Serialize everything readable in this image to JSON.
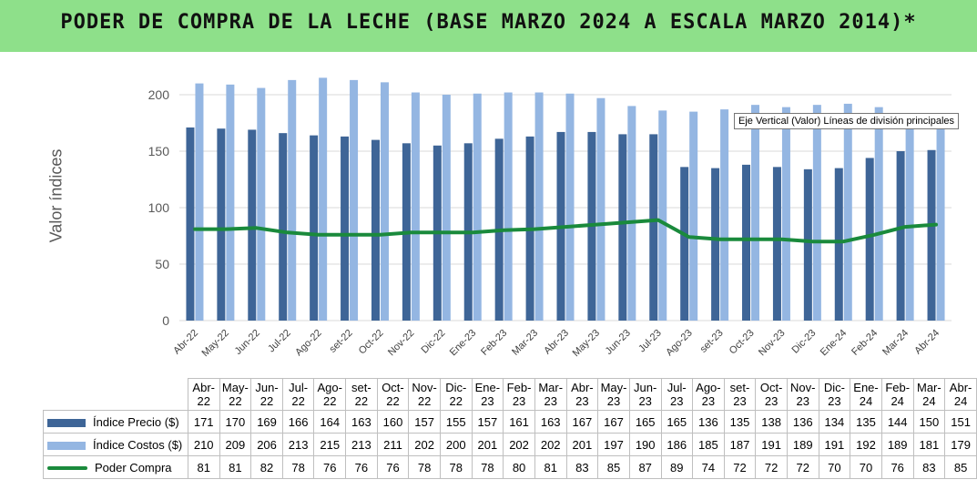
{
  "title": "PODER DE COMPRA DE LA LECHE (BASE MARZO 2024 A ESCALA MARZO 2014)*",
  "tooltip": "Eje Vertical (Valor)  Líneas de división principales",
  "colors": {
    "title_bg": "#8ee08a",
    "precio": "#3e6597",
    "costos": "#94b6e2",
    "poder": "#1a8a3c",
    "grid": "#d9d9d9"
  },
  "chart_data": {
    "type": "bar",
    "title": "PODER DE COMPRA DE LA LECHE (BASE MARZO 2024 A ESCALA MARZO 2014)*",
    "ylabel": "Valor índices",
    "xlabel": "",
    "ylim": [
      0,
      200
    ],
    "yticks": [
      0,
      50,
      100,
      150,
      200
    ],
    "grid": true,
    "legend": "data-table",
    "categories": [
      "Abr-22",
      "May-22",
      "Jun-22",
      "Jul-22",
      "Ago-22",
      "set-22",
      "Oct-22",
      "Nov-22",
      "Dic-22",
      "Ene-23",
      "Feb-23",
      "Mar-23",
      "Abr-23",
      "May-23",
      "Jun-23",
      "Jul-23",
      "Ago-23",
      "set-23",
      "Oct-23",
      "Nov-23",
      "Dic-23",
      "Ene-24",
      "Feb-24",
      "Mar-24",
      "Abr-24"
    ],
    "table_headers": [
      [
        "Abr-",
        "22"
      ],
      [
        "May-",
        "22"
      ],
      [
        "Jun-",
        "22"
      ],
      [
        "Jul-",
        "22"
      ],
      [
        "Ago-",
        "22"
      ],
      [
        "set-",
        "22"
      ],
      [
        "Oct-",
        "22"
      ],
      [
        "Nov-",
        "22"
      ],
      [
        "Dic-",
        "22"
      ],
      [
        "Ene-",
        "23"
      ],
      [
        "Feb-",
        "23"
      ],
      [
        "Mar-",
        "23"
      ],
      [
        "Abr-",
        "23"
      ],
      [
        "May-",
        "23"
      ],
      [
        "Jun-",
        "23"
      ],
      [
        "Jul-",
        "23"
      ],
      [
        "Ago-",
        "23"
      ],
      [
        "set-",
        "23"
      ],
      [
        "Oct-",
        "23"
      ],
      [
        "Nov-",
        "23"
      ],
      [
        "Dic-",
        "23"
      ],
      [
        "Ene-",
        "24"
      ],
      [
        "Feb-",
        "24"
      ],
      [
        "Mar-",
        "24"
      ],
      [
        "Abr-",
        "24"
      ]
    ],
    "series": [
      {
        "name": "Índice Precio ($)",
        "type": "bar",
        "values": [
          171,
          170,
          169,
          166,
          164,
          163,
          160,
          157,
          155,
          157,
          161,
          163,
          167,
          167,
          165,
          165,
          136,
          135,
          138,
          136,
          134,
          135,
          144,
          150,
          151
        ]
      },
      {
        "name": "Índice Costos ($)",
        "type": "bar",
        "values": [
          210,
          209,
          206,
          213,
          215,
          213,
          211,
          202,
          200,
          201,
          202,
          202,
          201,
          197,
          190,
          186,
          185,
          187,
          191,
          189,
          191,
          192,
          189,
          181,
          179
        ]
      },
      {
        "name": "Poder Compra",
        "type": "line",
        "values": [
          81,
          81,
          82,
          78,
          76,
          76,
          76,
          78,
          78,
          78,
          80,
          81,
          83,
          85,
          87,
          89,
          74,
          72,
          72,
          72,
          70,
          70,
          76,
          83,
          85
        ]
      }
    ]
  }
}
